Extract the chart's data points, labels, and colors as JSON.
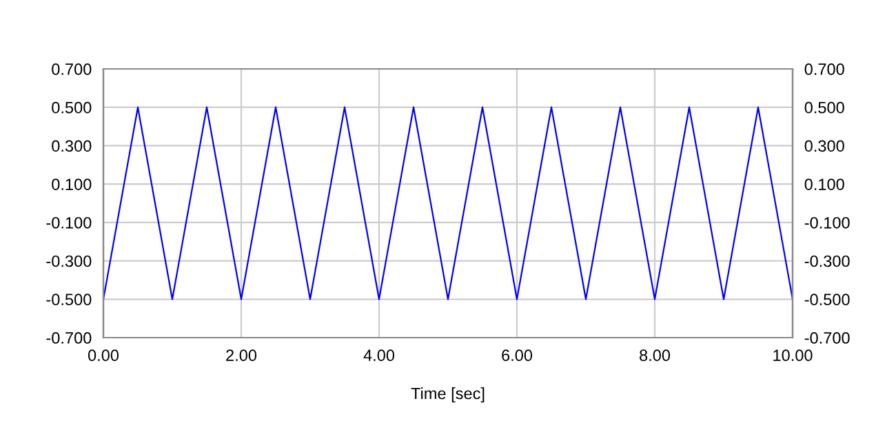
{
  "chart_data": {
    "type": "line",
    "xlabel": "Time [sec]",
    "x": [
      0,
      0.5,
      1,
      1.5,
      2,
      2.5,
      3,
      3.5,
      4,
      4.5,
      5,
      5.5,
      6,
      6.5,
      7,
      7.5,
      8,
      8.5,
      9,
      9.5,
      10
    ],
    "series": [
      {
        "color": "#0000ff",
        "values": [
          -0.5,
          0.5,
          -0.5,
          0.5,
          -0.5,
          0.5,
          -0.5,
          0.5,
          -0.5,
          0.5,
          -0.5,
          0.5,
          -0.5,
          0.5,
          -0.5,
          0.5,
          -0.5,
          0.5,
          -0.5,
          0.5,
          -0.5
        ]
      }
    ],
    "xlim": [
      0,
      10
    ],
    "xticks": [
      {
        "value": 0,
        "label": "0.00"
      },
      {
        "value": 2,
        "label": "2.00"
      },
      {
        "value": 4,
        "label": "4.00"
      },
      {
        "value": 6,
        "label": "6.00"
      },
      {
        "value": 8,
        "label": "8.00"
      },
      {
        "value": 10,
        "label": "10.00"
      }
    ],
    "ylim": [
      -0.7,
      0.7
    ],
    "yticks": [
      {
        "value": -0.7,
        "label": "-0.700"
      },
      {
        "value": -0.5,
        "label": "-0.500"
      },
      {
        "value": -0.3,
        "label": "-0.300"
      },
      {
        "value": -0.1,
        "label": "-0.100"
      },
      {
        "value": 0.1,
        "label": "0.100"
      },
      {
        "value": 0.3,
        "label": "0.300"
      },
      {
        "value": 0.5,
        "label": "0.500"
      },
      {
        "value": 0.7,
        "label": "0.700"
      }
    ],
    "y2lim": [
      -0.7,
      0.7
    ],
    "y2ticks": [
      {
        "value": -0.7,
        "label": "-0.700"
      },
      {
        "value": -0.5,
        "label": "-0.500"
      },
      {
        "value": -0.3,
        "label": "-0.300"
      },
      {
        "value": -0.1,
        "label": "-0.100"
      },
      {
        "value": 0.1,
        "label": "0.100"
      },
      {
        "value": 0.3,
        "label": "0.300"
      },
      {
        "value": 0.5,
        "label": "0.500"
      },
      {
        "value": 0.7,
        "label": "0.700"
      }
    ],
    "grid": true,
    "legend": false,
    "marker": "none",
    "line_style": "solid"
  }
}
